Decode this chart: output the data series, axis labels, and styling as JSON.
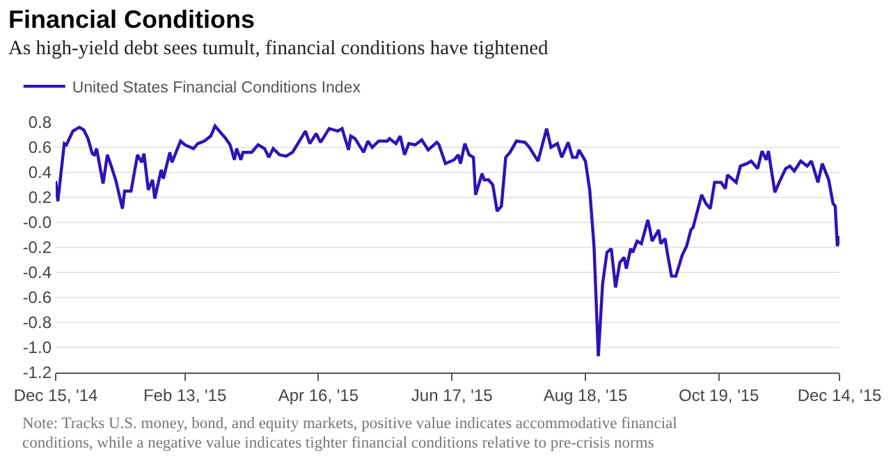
{
  "chart_data": {
    "type": "line",
    "title": "Financial Conditions",
    "subtitle": "As high-yield debt sees tumult, financial conditions have tightened",
    "annotations": [
      "Note: Tracks U.S. money, bond, and equity markets, positive value indicates accommodative financial conditions, while a negative value indicates tighter financial conditions relative to pre-crisis norms"
    ],
    "x": [
      "2014-12-15",
      "2014-12-16",
      "2014-12-19",
      "2014-12-20",
      "2014-12-23",
      "2014-12-26",
      "2014-12-28",
      "2014-12-30",
      "2015-01-01",
      "2015-01-02",
      "2015-01-03",
      "2015-01-06",
      "2015-01-08",
      "2015-01-10",
      "2015-01-12",
      "2015-01-15",
      "2015-01-16",
      "2015-01-19",
      "2015-01-22",
      "2015-01-24",
      "2015-01-25",
      "2015-01-27",
      "2015-01-29",
      "2015-01-30",
      "2015-02-02",
      "2015-02-03",
      "2015-02-06",
      "2015-02-07",
      "2015-02-11",
      "2015-02-13",
      "2015-02-17",
      "2015-02-19",
      "2015-02-22",
      "2015-02-25",
      "2015-02-27",
      "2015-03-02",
      "2015-03-04",
      "2015-03-06",
      "2015-03-08",
      "2015-03-09",
      "2015-03-11",
      "2015-03-12",
      "2015-03-16",
      "2015-03-19",
      "2015-03-22",
      "2015-03-24",
      "2015-03-26",
      "2015-03-29",
      "2015-04-01",
      "2015-04-02",
      "2015-04-04",
      "2015-04-10",
      "2015-04-12",
      "2015-04-15",
      "2015-04-17",
      "2015-04-21",
      "2015-04-25",
      "2015-04-27",
      "2015-04-30",
      "2015-05-01",
      "2015-05-03",
      "2015-05-07",
      "2015-05-09",
      "2015-05-11",
      "2015-05-14",
      "2015-05-18",
      "2015-05-19",
      "2015-05-22",
      "2015-05-24",
      "2015-05-26",
      "2015-05-28",
      "2015-05-31",
      "2015-06-03",
      "2015-06-06",
      "2015-06-10",
      "2015-06-11",
      "2015-06-14",
      "2015-06-18",
      "2015-06-20",
      "2015-06-21",
      "2015-06-23",
      "2015-06-25",
      "2015-06-27",
      "2015-06-28",
      "2015-07-01",
      "2015-07-02",
      "2015-07-04",
      "2015-07-06",
      "2015-07-08",
      "2015-07-10",
      "2015-07-12",
      "2015-07-14",
      "2015-07-17",
      "2015-07-21",
      "2015-07-23",
      "2015-07-27",
      "2015-07-31",
      "2015-08-02",
      "2015-08-05",
      "2015-08-07",
      "2015-08-10",
      "2015-08-12",
      "2015-08-14",
      "2015-08-15",
      "2015-08-18",
      "2015-08-20",
      "2015-08-22",
      "2015-08-24",
      "2015-08-26",
      "2015-08-28",
      "2015-08-30",
      "2015-09-01",
      "2015-09-03",
      "2015-09-05",
      "2015-09-06",
      "2015-09-08",
      "2015-09-09",
      "2015-09-11",
      "2015-09-13",
      "2015-09-16",
      "2015-09-17",
      "2015-09-18",
      "2015-09-21",
      "2015-09-22",
      "2015-09-24",
      "2015-09-25",
      "2015-09-27",
      "2015-09-29",
      "2015-10-02",
      "2015-10-04",
      "2015-10-06",
      "2015-10-07",
      "2015-10-09",
      "2015-10-11",
      "2015-10-13",
      "2015-10-15",
      "2015-10-17",
      "2015-10-20",
      "2015-10-22",
      "2015-10-23",
      "2015-10-27",
      "2015-10-29",
      "2015-11-01",
      "2015-11-03",
      "2015-11-06",
      "2015-11-08",
      "2015-11-10",
      "2015-11-11",
      "2015-11-14",
      "2015-11-16",
      "2015-11-19",
      "2015-11-21",
      "2015-11-23",
      "2015-11-26",
      "2015-11-29",
      "2015-12-01",
      "2015-12-04",
      "2015-12-06",
      "2015-12-09",
      "2015-12-11",
      "2015-12-12",
      "2015-12-13",
      "2015-12-14"
    ],
    "series": [
      {
        "name": "United States Financial Conditions Index",
        "color": "#2b14b8",
        "values": [
          0.33,
          0.17,
          0.63,
          0.62,
          0.73,
          0.76,
          0.74,
          0.67,
          0.55,
          0.54,
          0.59,
          0.31,
          0.54,
          0.44,
          0.33,
          0.11,
          0.25,
          0.25,
          0.54,
          0.48,
          0.55,
          0.26,
          0.34,
          0.19,
          0.42,
          0.35,
          0.56,
          0.48,
          0.65,
          0.62,
          0.59,
          0.63,
          0.65,
          0.69,
          0.77,
          0.71,
          0.67,
          0.62,
          0.5,
          0.59,
          0.5,
          0.56,
          0.56,
          0.62,
          0.59,
          0.52,
          0.59,
          0.54,
          0.53,
          0.54,
          0.56,
          0.73,
          0.63,
          0.71,
          0.64,
          0.75,
          0.73,
          0.75,
          0.58,
          0.69,
          0.67,
          0.56,
          0.65,
          0.6,
          0.65,
          0.65,
          0.67,
          0.63,
          0.69,
          0.54,
          0.63,
          0.62,
          0.66,
          0.58,
          0.64,
          0.62,
          0.47,
          0.5,
          0.54,
          0.47,
          0.63,
          0.54,
          0.52,
          0.22,
          0.39,
          0.34,
          0.34,
          0.3,
          0.09,
          0.13,
          0.52,
          0.56,
          0.65,
          0.64,
          0.6,
          0.49,
          0.75,
          0.6,
          0.63,
          0.52,
          0.64,
          0.52,
          0.52,
          0.58,
          0.49,
          0.26,
          -0.19,
          -1.07,
          -0.49,
          -0.24,
          -0.21,
          -0.52,
          -0.32,
          -0.28,
          -0.37,
          -0.21,
          -0.24,
          -0.15,
          -0.17,
          0.02,
          -0.06,
          -0.15,
          -0.06,
          -0.17,
          -0.13,
          -0.24,
          -0.43,
          -0.43,
          -0.26,
          -0.19,
          -0.06,
          -0.04,
          0.09,
          0.22,
          0.15,
          0.11,
          0.32,
          0.32,
          0.27,
          0.38,
          0.32,
          0.45,
          0.47,
          0.49,
          0.43,
          0.57,
          0.5,
          0.57,
          0.24,
          0.32,
          0.43,
          0.45,
          0.41,
          0.49,
          0.45,
          0.49,
          0.32,
          0.47,
          0.34,
          0.15,
          0.13,
          -0.19,
          -0.11
        ]
      }
    ],
    "xlim": [
      "2014-12-15",
      "2015-12-14"
    ],
    "xticks": [
      {
        "value": "2014-12-15",
        "label": "Dec 15, '14"
      },
      {
        "value": "2015-02-13",
        "label": "Feb 13, '15"
      },
      {
        "value": "2015-04-16",
        "label": "Apr 16, '15"
      },
      {
        "value": "2015-06-17",
        "label": "Jun 17, '15"
      },
      {
        "value": "2015-08-18",
        "label": "Aug 18, '15"
      },
      {
        "value": "2015-10-19",
        "label": "Oct 19, '15"
      },
      {
        "value": "2015-12-14",
        "label": "Dec 14, '15"
      }
    ],
    "ylim": [
      -1.2,
      0.8
    ],
    "yticks": [
      0.8,
      0.6,
      0.4,
      0.2,
      {
        "value": 0,
        "label": "-0.0"
      },
      -0.2,
      -0.4,
      -0.6,
      -0.8,
      {
        "value": -1,
        "label": "-1.0"
      },
      -1.2
    ],
    "grid": "y",
    "legend": "top left",
    "marker": "none",
    "line_style": "solid"
  }
}
